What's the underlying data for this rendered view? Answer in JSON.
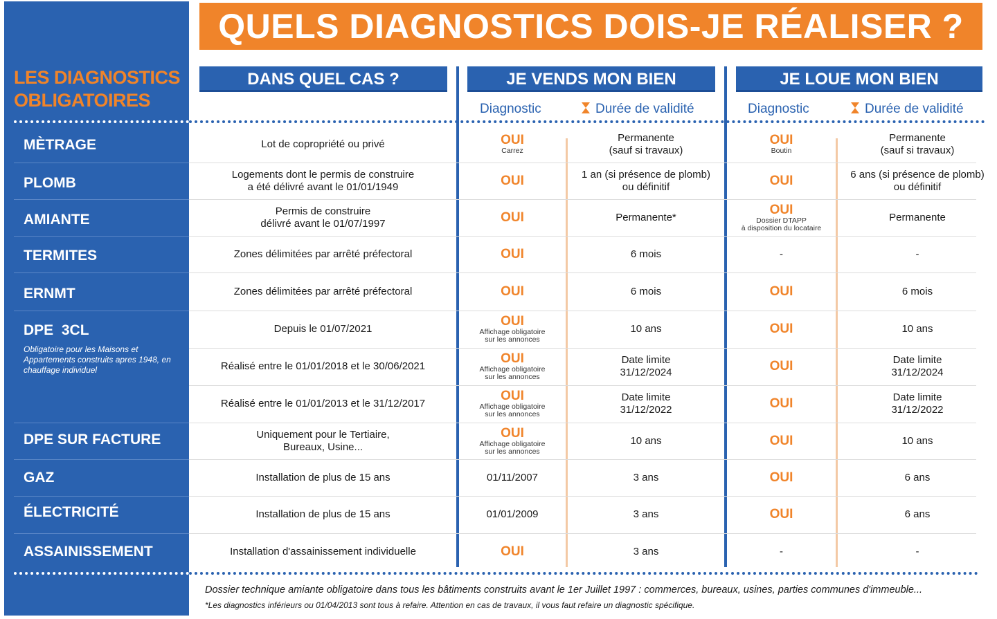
{
  "banner": "QUELS DIAGNOSTICS DOIS-JE RÉALISER ?",
  "sidebar": {
    "title_line1": "LES DIAGNOSTICS",
    "title_line2": "OBLIGATOIRES",
    "dpe_note": "Obligatoire pour les Maisons et Appartements construits apres 1948, en chauffage individuel"
  },
  "headers": {
    "case": "DANS QUEL CAS ?",
    "sell": "JE VENDS MON BIEN",
    "rent": "JE LOUE MON BIEN",
    "diagnostic": "Diagnostic",
    "validity": "Durée de validité"
  },
  "rows": [
    {
      "label": "MÈTRAGE",
      "case": [
        "Lot de copropriété ou privé"
      ],
      "sell_diag": "OUI",
      "sell_diag_note": "Carrez",
      "sell_valid": [
        "Permanente",
        "(sauf si travaux)"
      ],
      "rent_diag": "OUI",
      "rent_diag_note": "Boutin",
      "rent_valid": [
        "Permanente",
        "(sauf si travaux)"
      ]
    },
    {
      "label": "PLOMB",
      "case": [
        "Logements dont le permis de construire",
        "a été délivré avant le 01/01/1949"
      ],
      "sell_diag": "OUI",
      "sell_valid": [
        "1 an (si présence de plomb)",
        "ou définitif"
      ],
      "rent_diag": "OUI",
      "rent_valid": [
        "6 ans (si présence de plomb)",
        "ou définitif"
      ]
    },
    {
      "label": "AMIANTE",
      "case": [
        "Permis de construire",
        "délivré avant le 01/07/1997"
      ],
      "sell_diag": "OUI",
      "sell_valid": [
        "Permanente*"
      ],
      "rent_diag": "OUI",
      "rent_diag_note": "Dossier DTAPP",
      "rent_diag_note2": "à disposition du locataire",
      "rent_valid": [
        "Permanente"
      ]
    },
    {
      "label": "TERMITES",
      "case": [
        "Zones délimitées par arrêté préfectoral"
      ],
      "sell_diag": "OUI",
      "sell_valid": [
        "6 mois"
      ],
      "rent_diag": "-",
      "rent_valid": [
        "-"
      ]
    },
    {
      "label": "ERNMT",
      "case": [
        "Zones délimitées par arrêté préfectoral"
      ],
      "sell_diag": "OUI",
      "sell_valid": [
        "6 mois"
      ],
      "rent_diag": "OUI",
      "rent_valid": [
        "6 mois"
      ]
    },
    {
      "label": "DPE  3CL",
      "case": [
        "Depuis le 01/07/2021"
      ],
      "sell_diag": "OUI",
      "sell_diag_note": "Affichage obligatoire",
      "sell_diag_note2": "sur les annonces",
      "sell_valid": [
        "10 ans"
      ],
      "rent_diag": "OUI",
      "rent_valid": [
        "10 ans"
      ]
    },
    {
      "label": "",
      "case": [
        "Réalisé entre le 01/01/2018 et le 30/06/2021"
      ],
      "sell_diag": "OUI",
      "sell_diag_note": "Affichage obligatoire",
      "sell_diag_note2": "sur les annonces",
      "sell_valid": [
        "Date limite",
        "31/12/2024"
      ],
      "rent_diag": "OUI",
      "rent_valid": [
        "Date limite",
        "31/12/2024"
      ]
    },
    {
      "label": "",
      "case": [
        "Réalisé entre le 01/01/2013 et le 31/12/2017"
      ],
      "sell_diag": "OUI",
      "sell_diag_note": "Affichage obligatoire",
      "sell_diag_note2": "sur les annonces",
      "sell_valid": [
        "Date limite",
        "31/12/2022"
      ],
      "rent_diag": "OUI",
      "rent_valid": [
        "Date limite",
        "31/12/2022"
      ]
    },
    {
      "label": "DPE SUR FACTURE",
      "case": [
        "Uniquement pour le Tertiaire,",
        "Bureaux, Usine..."
      ],
      "sell_diag": "OUI",
      "sell_diag_note": "Affichage obligatoire",
      "sell_diag_note2": "sur les annonces",
      "sell_valid": [
        "10 ans"
      ],
      "rent_diag": "OUI",
      "rent_valid": [
        "10 ans"
      ]
    },
    {
      "label": "GAZ",
      "case": [
        "Installation de plus de 15 ans"
      ],
      "sell_diag": "01/11/2007",
      "sell_valid": [
        "3 ans"
      ],
      "rent_diag": "OUI",
      "rent_valid": [
        "6 ans"
      ]
    },
    {
      "label": "ÉLECTRICITÉ",
      "case": [
        "Installation de plus de 15 ans"
      ],
      "sell_diag": "01/01/2009",
      "sell_valid": [
        "3 ans"
      ],
      "rent_diag": "OUI",
      "rent_valid": [
        "6 ans"
      ]
    },
    {
      "label": "ASSAINISSEMENT",
      "case": [
        "Installation d'assainissement individuelle"
      ],
      "sell_diag": "OUI",
      "sell_valid": [
        "3 ans"
      ],
      "rent_diag": "-",
      "rent_valid": [
        "-"
      ]
    }
  ],
  "footer": {
    "line1": "Dossier technique amiante obligatoire dans tous les bâtiments construits avant le 1er Juillet 1997 : commerces, bureaux, usines, parties communes d'immeuble...",
    "line2": "*Les diagnostics inférieurs ou 01/04/2013 sont tous à refaire. Attention en cas de travaux, il vous faut refaire un diagnostic spécifique."
  }
}
